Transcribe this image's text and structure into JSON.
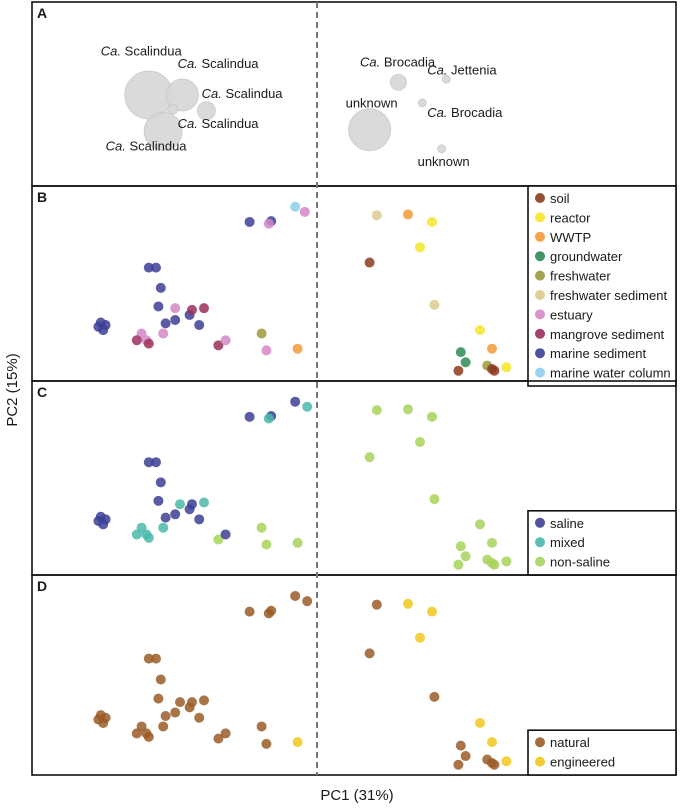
{
  "axes": {
    "xlabel": "PC1 (31%)",
    "ylabel": "PC2 (15%)",
    "xrange": [
      0,
      100
    ],
    "yrange": [
      0,
      100
    ]
  },
  "colors": {
    "soil": "#8c3b1e",
    "reactor": "#f5e52a",
    "WWTP": "#f59a36",
    "groundwater": "#2f8a52",
    "freshwater": "#9a9a3c",
    "freshwater sediment": "#dccb8f",
    "estuary": "#d488c8",
    "mangrove sediment": "#9c2f5c",
    "marine sediment": "#3c3f95",
    "marine water column": "#8ccfee",
    "saline": "#3c3f95",
    "mixed": "#4ab8ab",
    "non-saline": "#a8d45a",
    "natural": "#9a5c28",
    "engineered": "#f0c81e",
    "bubble": "#d6d6d6"
  },
  "chart_data": [
    {
      "panel": "A",
      "type": "scatter",
      "title": "A",
      "description": "bubble",
      "points": [
        {
          "x": 16,
          "y": 50,
          "size": 24,
          "label": "Ca. Scalindua"
        },
        {
          "x": 23,
          "y": 50,
          "size": 16,
          "label": "Ca. Scalindua"
        },
        {
          "x": 21,
          "y": 41,
          "size": 5,
          "label": "Ca. Scalindua"
        },
        {
          "x": 28,
          "y": 40,
          "size": 9,
          "label": "Ca. Scalindua"
        },
        {
          "x": 19,
          "y": 27,
          "size": 19,
          "label": "Ca. Scalindua"
        },
        {
          "x": 68,
          "y": 58,
          "size": 8,
          "label": "Ca. Brocadia"
        },
        {
          "x": 78,
          "y": 60,
          "size": 4,
          "label": "Ca. Jettenia"
        },
        {
          "x": 73,
          "y": 45,
          "size": 4,
          "label": "Ca. Brocadia"
        },
        {
          "x": 62,
          "y": 28,
          "size": 21,
          "label": "unknown"
        },
        {
          "x": 77,
          "y": 16,
          "size": 4,
          "label": "unknown"
        }
      ],
      "annotations": [
        {
          "text": "Ca. Scalindua",
          "italic": "Ca.",
          "rest": " Scalindua",
          "x": 6,
          "y": 75
        },
        {
          "text": "Ca. Scalindua",
          "italic": "Ca.",
          "rest": " Scalindua",
          "x": 22,
          "y": 67
        },
        {
          "text": "Ca. Scalindua",
          "italic": "Ca.",
          "rest": " Scalindua",
          "x": 27,
          "y": 48
        },
        {
          "text": "Ca. Scalindua",
          "italic": "Ca.",
          "rest": " Scalindua",
          "x": 22,
          "y": 29
        },
        {
          "text": "Ca. Scalindua",
          "italic": "Ca.",
          "rest": " Scalindua",
          "x": 7,
          "y": 15
        },
        {
          "text": "Ca. Brocadia",
          "italic": "Ca.",
          "rest": " Brocadia",
          "x": 60,
          "y": 68
        },
        {
          "text": "Ca. Jettenia",
          "italic": "Ca.",
          "rest": " Jettenia",
          "x": 74,
          "y": 63
        },
        {
          "text": "unknown",
          "italic": "",
          "rest": "unknown",
          "x": 57,
          "y": 42
        },
        {
          "text": "Ca. Brocadia",
          "italic": "Ca.",
          "rest": " Brocadia",
          "x": 74,
          "y": 36
        },
        {
          "text": "unknown",
          "italic": "",
          "rest": "unknown",
          "x": 72,
          "y": 5
        }
      ]
    },
    {
      "panel": "B",
      "type": "scatter",
      "title": "B",
      "legend": {
        "position": "right",
        "entries": [
          "soil",
          "reactor",
          "WWTP",
          "groundwater",
          "freshwater",
          "freshwater sediment",
          "estuary",
          "mangrove sediment",
          "marine sediment",
          "marine water column"
        ]
      },
      "points": [
        {
          "x": 46.5,
          "y": 96,
          "c": "marine water column"
        },
        {
          "x": 48.5,
          "y": 93,
          "c": "estuary"
        },
        {
          "x": 37,
          "y": 87,
          "c": "marine sediment"
        },
        {
          "x": 41.5,
          "y": 87.5,
          "c": "marine sediment"
        },
        {
          "x": 41,
          "y": 86,
          "c": "estuary"
        },
        {
          "x": 16,
          "y": 60,
          "c": "marine sediment"
        },
        {
          "x": 17.5,
          "y": 60,
          "c": "marine sediment"
        },
        {
          "x": 18.5,
          "y": 48,
          "c": "marine sediment"
        },
        {
          "x": 18,
          "y": 37,
          "c": "marine sediment"
        },
        {
          "x": 19.5,
          "y": 27,
          "c": "marine sediment"
        },
        {
          "x": 21.5,
          "y": 29,
          "c": "marine sediment"
        },
        {
          "x": 24.5,
          "y": 32,
          "c": "marine sediment"
        },
        {
          "x": 26.5,
          "y": 26,
          "c": "marine sediment"
        },
        {
          "x": 21.5,
          "y": 36,
          "c": "estuary"
        },
        {
          "x": 5.5,
          "y": 25,
          "c": "marine sediment"
        },
        {
          "x": 6,
          "y": 27.5,
          "c": "marine sediment"
        },
        {
          "x": 7,
          "y": 26,
          "c": "marine sediment"
        },
        {
          "x": 6.5,
          "y": 23,
          "c": "marine sediment"
        },
        {
          "x": 14.5,
          "y": 21,
          "c": "estuary"
        },
        {
          "x": 15.5,
          "y": 17,
          "c": "estuary"
        },
        {
          "x": 13.5,
          "y": 17,
          "c": "mangrove sediment"
        },
        {
          "x": 16,
          "y": 15,
          "c": "mangrove sediment"
        },
        {
          "x": 19,
          "y": 21,
          "c": "estuary"
        },
        {
          "x": 25,
          "y": 35,
          "c": "mangrove sediment"
        },
        {
          "x": 27.5,
          "y": 36,
          "c": "mangrove sediment"
        },
        {
          "x": 30.5,
          "y": 14,
          "c": "mangrove sediment"
        },
        {
          "x": 32,
          "y": 17,
          "c": "estuary"
        },
        {
          "x": 39.5,
          "y": 21,
          "c": "freshwater"
        },
        {
          "x": 40.5,
          "y": 11,
          "c": "estuary"
        },
        {
          "x": 47,
          "y": 12,
          "c": "WWTP"
        },
        {
          "x": 63.5,
          "y": 91,
          "c": "freshwater sediment"
        },
        {
          "x": 70,
          "y": 91.5,
          "c": "WWTP"
        },
        {
          "x": 75,
          "y": 87,
          "c": "reactor"
        },
        {
          "x": 72.5,
          "y": 72,
          "c": "reactor"
        },
        {
          "x": 62,
          "y": 63,
          "c": "soil"
        },
        {
          "x": 75.5,
          "y": 38,
          "c": "freshwater sediment"
        },
        {
          "x": 85,
          "y": 23,
          "c": "reactor"
        },
        {
          "x": 81,
          "y": 10,
          "c": "groundwater"
        },
        {
          "x": 82,
          "y": 4,
          "c": "groundwater"
        },
        {
          "x": 80.5,
          "y": -1,
          "c": "soil"
        },
        {
          "x": 87.5,
          "y": 12,
          "c": "WWTP"
        },
        {
          "x": 86.5,
          "y": 2,
          "c": "freshwater"
        },
        {
          "x": 87.5,
          "y": 0,
          "c": "soil"
        },
        {
          "x": 88,
          "y": -1,
          "c": "soil"
        },
        {
          "x": 90.5,
          "y": 1,
          "c": "reactor"
        }
      ]
    },
    {
      "panel": "C",
      "type": "scatter",
      "title": "C",
      "legend": {
        "position": "bottom-right",
        "entries": [
          "saline",
          "mixed",
          "non-saline"
        ]
      },
      "points": [
        {
          "x": 46.5,
          "y": 96,
          "c": "saline"
        },
        {
          "x": 49,
          "y": 93,
          "c": "mixed"
        },
        {
          "x": 37,
          "y": 87,
          "c": "saline"
        },
        {
          "x": 41.5,
          "y": 87.5,
          "c": "saline"
        },
        {
          "x": 41,
          "y": 86,
          "c": "mixed"
        },
        {
          "x": 16,
          "y": 60,
          "c": "saline"
        },
        {
          "x": 17.5,
          "y": 60,
          "c": "saline"
        },
        {
          "x": 18.5,
          "y": 48,
          "c": "saline"
        },
        {
          "x": 18,
          "y": 37,
          "c": "saline"
        },
        {
          "x": 19.5,
          "y": 27,
          "c": "saline"
        },
        {
          "x": 21.5,
          "y": 29,
          "c": "saline"
        },
        {
          "x": 24.5,
          "y": 32,
          "c": "saline"
        },
        {
          "x": 26.5,
          "y": 26,
          "c": "saline"
        },
        {
          "x": 22.5,
          "y": 35,
          "c": "mixed"
        },
        {
          "x": 5.5,
          "y": 25,
          "c": "saline"
        },
        {
          "x": 6,
          "y": 27.5,
          "c": "saline"
        },
        {
          "x": 7,
          "y": 26,
          "c": "saline"
        },
        {
          "x": 6.5,
          "y": 23,
          "c": "saline"
        },
        {
          "x": 14.5,
          "y": 21,
          "c": "mixed"
        },
        {
          "x": 15.5,
          "y": 17,
          "c": "mixed"
        },
        {
          "x": 13.5,
          "y": 17,
          "c": "mixed"
        },
        {
          "x": 16,
          "y": 15,
          "c": "mixed"
        },
        {
          "x": 19,
          "y": 21,
          "c": "mixed"
        },
        {
          "x": 25,
          "y": 35,
          "c": "saline"
        },
        {
          "x": 27.5,
          "y": 36,
          "c": "mixed"
        },
        {
          "x": 30.5,
          "y": 14,
          "c": "non-saline"
        },
        {
          "x": 32,
          "y": 17,
          "c": "saline"
        },
        {
          "x": 39.5,
          "y": 21,
          "c": "non-saline"
        },
        {
          "x": 40.5,
          "y": 11,
          "c": "non-saline"
        },
        {
          "x": 47,
          "y": 12,
          "c": "non-saline"
        },
        {
          "x": 63.5,
          "y": 91,
          "c": "non-saline"
        },
        {
          "x": 70,
          "y": 91.5,
          "c": "non-saline"
        },
        {
          "x": 75,
          "y": 87,
          "c": "non-saline"
        },
        {
          "x": 72.5,
          "y": 72,
          "c": "non-saline"
        },
        {
          "x": 62,
          "y": 63,
          "c": "non-saline"
        },
        {
          "x": 75.5,
          "y": 38,
          "c": "non-saline"
        },
        {
          "x": 85,
          "y": 23,
          "c": "non-saline"
        },
        {
          "x": 81,
          "y": 10,
          "c": "non-saline"
        },
        {
          "x": 82,
          "y": 4,
          "c": "non-saline"
        },
        {
          "x": 80.5,
          "y": -1,
          "c": "non-saline"
        },
        {
          "x": 87.5,
          "y": 12,
          "c": "non-saline"
        },
        {
          "x": 86.5,
          "y": 2,
          "c": "non-saline"
        },
        {
          "x": 87.5,
          "y": 0,
          "c": "non-saline"
        },
        {
          "x": 88,
          "y": -1,
          "c": "non-saline"
        },
        {
          "x": 90.5,
          "y": 1,
          "c": "non-saline"
        }
      ]
    },
    {
      "panel": "D",
      "type": "scatter",
      "title": "D",
      "legend": {
        "position": "bottom-right",
        "entries": [
          "natural",
          "engineered"
        ]
      },
      "points": [
        {
          "x": 46.5,
          "y": 96,
          "c": "natural"
        },
        {
          "x": 49,
          "y": 93,
          "c": "natural"
        },
        {
          "x": 37,
          "y": 87,
          "c": "natural"
        },
        {
          "x": 41.5,
          "y": 87.5,
          "c": "natural"
        },
        {
          "x": 41,
          "y": 86,
          "c": "natural"
        },
        {
          "x": 16,
          "y": 60,
          "c": "natural"
        },
        {
          "x": 17.5,
          "y": 60,
          "c": "natural"
        },
        {
          "x": 18.5,
          "y": 48,
          "c": "natural"
        },
        {
          "x": 18,
          "y": 37,
          "c": "natural"
        },
        {
          "x": 19.5,
          "y": 27,
          "c": "natural"
        },
        {
          "x": 21.5,
          "y": 29,
          "c": "natural"
        },
        {
          "x": 24.5,
          "y": 32,
          "c": "natural"
        },
        {
          "x": 26.5,
          "y": 26,
          "c": "natural"
        },
        {
          "x": 22.5,
          "y": 35,
          "c": "natural"
        },
        {
          "x": 5.5,
          "y": 25,
          "c": "natural"
        },
        {
          "x": 6,
          "y": 27.5,
          "c": "natural"
        },
        {
          "x": 7,
          "y": 26,
          "c": "natural"
        },
        {
          "x": 6.5,
          "y": 23,
          "c": "natural"
        },
        {
          "x": 14.5,
          "y": 21,
          "c": "natural"
        },
        {
          "x": 15.5,
          "y": 17,
          "c": "natural"
        },
        {
          "x": 13.5,
          "y": 17,
          "c": "natural"
        },
        {
          "x": 16,
          "y": 15,
          "c": "natural"
        },
        {
          "x": 19,
          "y": 21,
          "c": "natural"
        },
        {
          "x": 25,
          "y": 35,
          "c": "natural"
        },
        {
          "x": 27.5,
          "y": 36,
          "c": "natural"
        },
        {
          "x": 30.5,
          "y": 14,
          "c": "natural"
        },
        {
          "x": 32,
          "y": 17,
          "c": "natural"
        },
        {
          "x": 39.5,
          "y": 21,
          "c": "natural"
        },
        {
          "x": 40.5,
          "y": 11,
          "c": "natural"
        },
        {
          "x": 47,
          "y": 12,
          "c": "engineered"
        },
        {
          "x": 63.5,
          "y": 91,
          "c": "natural"
        },
        {
          "x": 70,
          "y": 91.5,
          "c": "engineered"
        },
        {
          "x": 75,
          "y": 87,
          "c": "engineered"
        },
        {
          "x": 72.5,
          "y": 72,
          "c": "engineered"
        },
        {
          "x": 62,
          "y": 63,
          "c": "natural"
        },
        {
          "x": 75.5,
          "y": 38,
          "c": "natural"
        },
        {
          "x": 85,
          "y": 23,
          "c": "engineered"
        },
        {
          "x": 81,
          "y": 10,
          "c": "natural"
        },
        {
          "x": 82,
          "y": 4,
          "c": "natural"
        },
        {
          "x": 80.5,
          "y": -1,
          "c": "natural"
        },
        {
          "x": 87.5,
          "y": 12,
          "c": "engineered"
        },
        {
          "x": 86.5,
          "y": 2,
          "c": "natural"
        },
        {
          "x": 87.5,
          "y": 0,
          "c": "natural"
        },
        {
          "x": 88,
          "y": -1,
          "c": "natural"
        },
        {
          "x": 90.5,
          "y": 1,
          "c": "engineered"
        }
      ]
    }
  ]
}
